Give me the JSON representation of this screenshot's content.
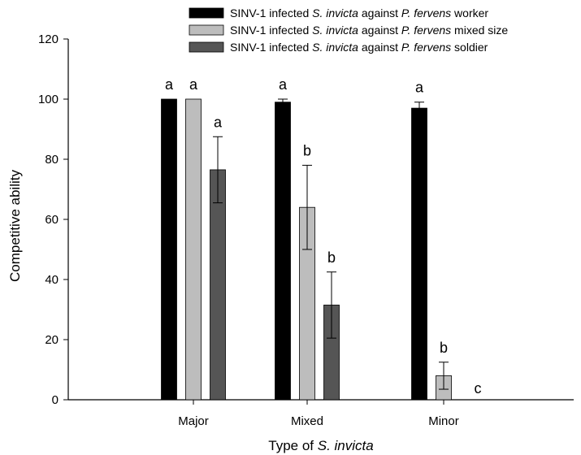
{
  "chart_data": {
    "type": "bar",
    "title": "",
    "xlabel_parts": [
      {
        "text": "Type of ",
        "italic": false
      },
      {
        "text": "S. invicta",
        "italic": true
      }
    ],
    "ylabel": "Competitive ability",
    "ylim": [
      0,
      120
    ],
    "yticks": [
      "0",
      "20",
      "40",
      "60",
      "80",
      "100",
      "120"
    ],
    "categories": [
      "Major",
      "Mixed",
      "Minor"
    ],
    "legend_position": "top-right",
    "grid": false,
    "series": [
      {
        "name_parts": [
          {
            "text": "SINV-1 infected ",
            "italic": false
          },
          {
            "text": "S. invicta",
            "italic": true
          },
          {
            "text": " against ",
            "italic": false
          },
          {
            "text": "P. fervens",
            "italic": true
          },
          {
            "text": " worker",
            "italic": false
          }
        ],
        "color": "#000000",
        "values": [
          100,
          99,
          97
        ],
        "errors": [
          0,
          1,
          2
        ],
        "letters": [
          "a",
          "a",
          "a"
        ]
      },
      {
        "name_parts": [
          {
            "text": "SINV-1 infected ",
            "italic": false
          },
          {
            "text": "S. invicta",
            "italic": true
          },
          {
            "text": " against ",
            "italic": false
          },
          {
            "text": "P. fervens",
            "italic": true
          },
          {
            "text": " mixed size",
            "italic": false
          }
        ],
        "color": "#bdbdbd",
        "values": [
          100,
          64,
          8
        ],
        "errors": [
          0,
          14,
          4.5
        ],
        "letters": [
          "a",
          "b",
          "b"
        ]
      },
      {
        "name_parts": [
          {
            "text": "SINV-1 infected ",
            "italic": false
          },
          {
            "text": "S. invicta",
            "italic": true
          },
          {
            "text": " against ",
            "italic": false
          },
          {
            "text": "P. fervens",
            "italic": true
          },
          {
            "text": " soldier",
            "italic": false
          }
        ],
        "color": "#555555",
        "values": [
          76.5,
          31.5,
          0
        ],
        "errors": [
          11,
          11,
          0
        ],
        "letters": [
          "a",
          "b",
          "c"
        ]
      }
    ]
  }
}
